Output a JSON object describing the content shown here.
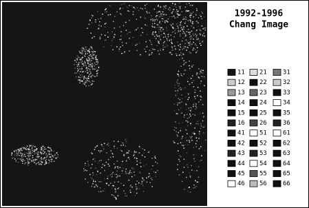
{
  "title_lines": [
    "1992-1996",
    "Chang Image"
  ],
  "legend": {
    "columns": [
      [
        {
          "label": "11",
          "color": "#111"
        },
        {
          "label": "12",
          "color": "#ccc"
        },
        {
          "label": "13",
          "color": "#999"
        },
        {
          "label": "14",
          "color": "#111"
        },
        {
          "label": "15",
          "color": "#111"
        },
        {
          "label": "16",
          "color": "#222"
        },
        {
          "label": "41",
          "color": "#111"
        },
        {
          "label": "42",
          "color": "#111"
        },
        {
          "label": "43",
          "color": "#222"
        },
        {
          "label": "44",
          "color": "#111"
        },
        {
          "label": "45",
          "color": "#111"
        },
        {
          "label": "46",
          "color": "#fff"
        }
      ],
      [
        {
          "label": "21",
          "color": "#ddd"
        },
        {
          "label": "22",
          "color": "#111"
        },
        {
          "label": "23",
          "color": "#666"
        },
        {
          "label": "24",
          "color": "#111"
        },
        {
          "label": "25",
          "color": "#111"
        },
        {
          "label": "26",
          "color": "#444"
        },
        {
          "label": "51",
          "color": "#fff"
        },
        {
          "label": "52",
          "color": "#111"
        },
        {
          "label": "53",
          "color": "#222"
        },
        {
          "label": "54",
          "color": "#fff"
        },
        {
          "label": "55",
          "color": "#555"
        },
        {
          "label": "56",
          "color": "#bbb"
        }
      ],
      [
        {
          "label": "31",
          "color": "#777"
        },
        {
          "label": "32",
          "color": "#ccc"
        },
        {
          "label": "33",
          "color": "#111"
        },
        {
          "label": "34",
          "color": "#fff"
        },
        {
          "label": "35",
          "color": "#111"
        },
        {
          "label": "36",
          "color": "#222"
        },
        {
          "label": "61",
          "color": "#fff"
        },
        {
          "label": "62",
          "color": "#111"
        },
        {
          "label": "63",
          "color": "#111"
        },
        {
          "label": "64",
          "color": "#111"
        },
        {
          "label": "65",
          "color": "#111"
        },
        {
          "label": "66",
          "color": "#111"
        }
      ]
    ]
  }
}
